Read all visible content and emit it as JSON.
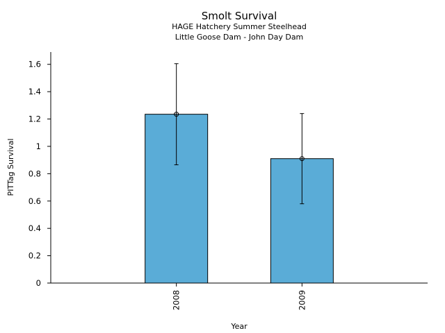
{
  "chart_data": {
    "type": "bar",
    "title": "Smolt Survival",
    "subtitle_lines": [
      "HAGE Hatchery Summer Steelhead",
      "Little Goose Dam - John Day Dam"
    ],
    "xlabel": "Year",
    "ylabel": "PITTag Survival",
    "categories": [
      "2008",
      "2009"
    ],
    "values": [
      1.235,
      0.91
    ],
    "error_low": [
      0.865,
      0.58
    ],
    "error_high": [
      1.605,
      1.24
    ],
    "ylim": [
      0,
      1.69
    ],
    "yticks": [
      0,
      0.2,
      0.4,
      0.6,
      0.8,
      1,
      1.2,
      1.4,
      1.6
    ],
    "ytick_labels": [
      "0",
      "0.2",
      "0.4",
      "0.6",
      "0.8",
      "1",
      "1.2",
      "1.4",
      "1.6"
    ],
    "bar_color": "#5aacd7",
    "grid": false,
    "legend": "none"
  }
}
